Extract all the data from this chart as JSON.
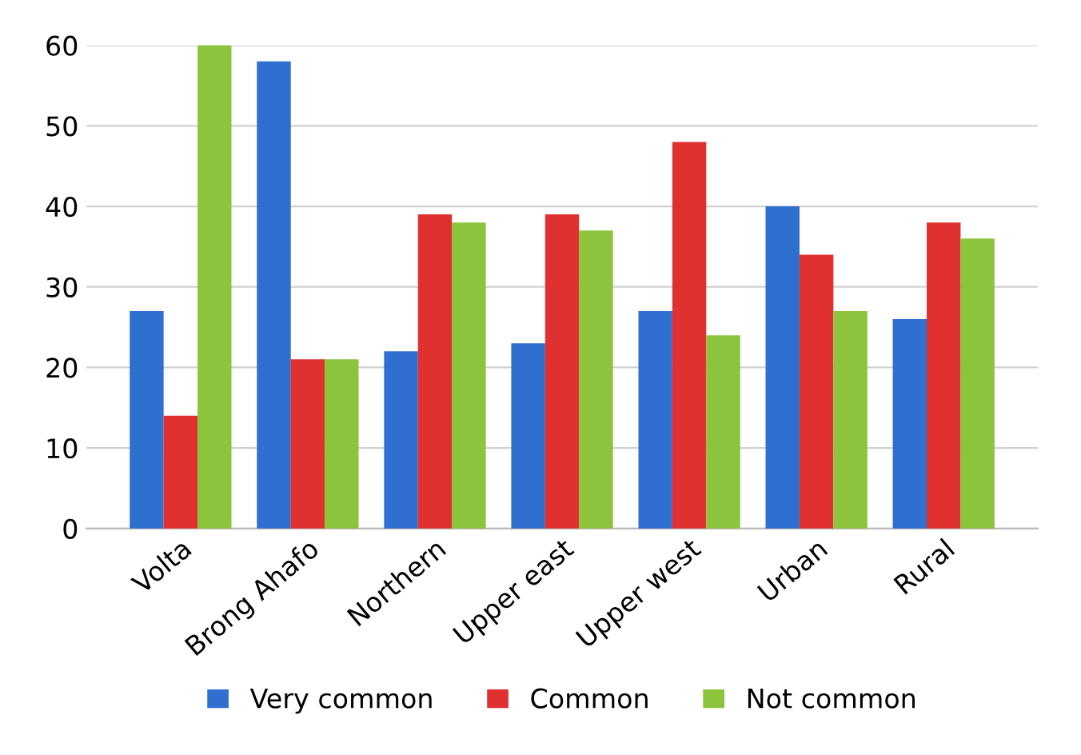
{
  "chart_data": {
    "type": "bar",
    "categories": [
      "Volta",
      "Brong Ahafo",
      "Northern",
      "Upper east",
      "Upper west",
      "Urban",
      "Rural"
    ],
    "series": [
      {
        "name": "Very common",
        "color": "#2e6fd0",
        "values": [
          27,
          58,
          22,
          23,
          27,
          40,
          26
        ]
      },
      {
        "name": "Common",
        "color": "#e03030",
        "values": [
          14,
          21,
          39,
          39,
          48,
          34,
          38
        ]
      },
      {
        "name": "Not common",
        "color": "#8cc43c",
        "values": [
          60,
          21,
          38,
          37,
          24,
          27,
          36
        ]
      }
    ],
    "ylim": [
      0,
      60
    ],
    "yticks": [
      0,
      10,
      20,
      30,
      40,
      50,
      60
    ],
    "grid": "y",
    "legend": "bottom"
  }
}
